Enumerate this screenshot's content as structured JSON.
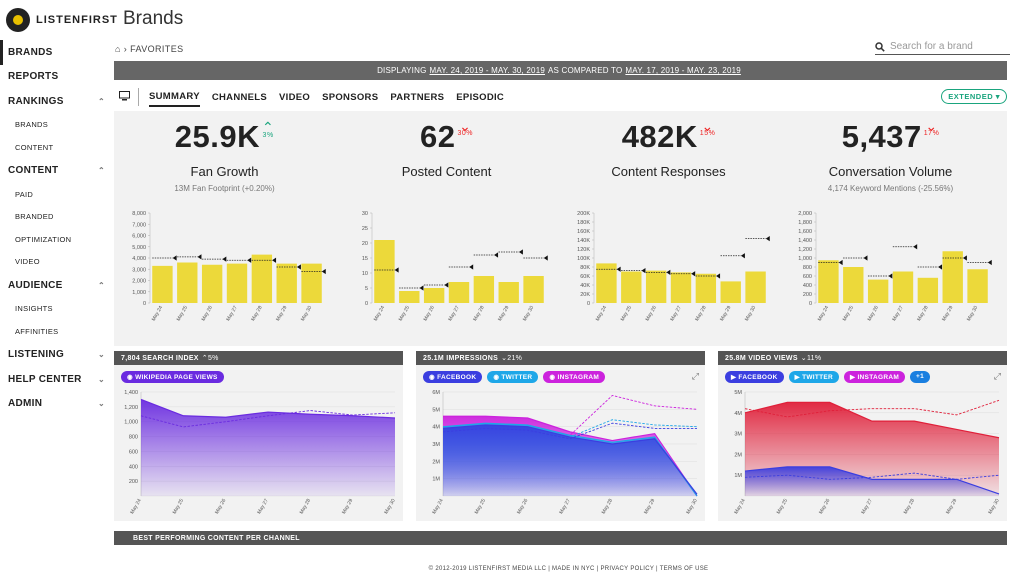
{
  "app": {
    "logo_text": "LISTENFIRST",
    "page_title": "Brands"
  },
  "sidebar": {
    "items": [
      {
        "label": "BRANDS",
        "level": 1,
        "active": true,
        "chevron": ""
      },
      {
        "label": "REPORTS",
        "level": 1,
        "chevron": ""
      },
      {
        "label": "RANKINGS",
        "level": 1,
        "chevron": "^"
      },
      {
        "label": "BRANDS",
        "level": 2
      },
      {
        "label": "CONTENT",
        "level": 2
      },
      {
        "label": "CONTENT",
        "level": 1,
        "chevron": "^"
      },
      {
        "label": "PAID",
        "level": 2
      },
      {
        "label": "BRANDED",
        "level": 2
      },
      {
        "label": "OPTIMIZATION",
        "level": 2
      },
      {
        "label": "VIDEO",
        "level": 2
      },
      {
        "label": "AUDIENCE",
        "level": 1,
        "chevron": "^"
      },
      {
        "label": "INSIGHTS",
        "level": 2
      },
      {
        "label": "AFFINITIES",
        "level": 2
      },
      {
        "label": "LISTENING",
        "level": 1,
        "chevron": "v"
      },
      {
        "label": "HELP CENTER",
        "level": 1,
        "chevron": "v"
      },
      {
        "label": "ADMIN",
        "level": 1,
        "chevron": "v"
      }
    ]
  },
  "breadcrumb": "FAVORITES",
  "search": {
    "placeholder": "Search for a brand"
  },
  "datebar": {
    "prefix": "DISPLAYING",
    "range": "MAY. 24, 2019 - MAY. 30, 2019",
    "mid": "AS COMPARED TO",
    "compare": "MAY. 17, 2019 - MAY. 23, 2019"
  },
  "tabs": [
    "SUMMARY",
    "CHANNELS",
    "VIDEO",
    "SPONSORS",
    "PARTNERS",
    "EPISODIC"
  ],
  "extended_label": "EXTENDED",
  "kpis": [
    {
      "value": "25.9K",
      "change": "3%",
      "dir": "up",
      "name": "Fan Growth",
      "sub": "13M Fan Footprint (+0.20%)"
    },
    {
      "value": "62",
      "change": "30%",
      "dir": "down",
      "name": "Posted Content",
      "sub": ""
    },
    {
      "value": "482K",
      "change": "15%",
      "dir": "down",
      "name": "Content Responses",
      "sub": ""
    },
    {
      "value": "5,437",
      "change": "17%",
      "dir": "down",
      "name": "Conversation Volume",
      "sub": "4,174 Keyword Mentions (-25.56%)"
    }
  ],
  "cards": [
    {
      "title": "7,804 SEARCH INDEX",
      "change": "5%",
      "dir": "up",
      "pills": [
        {
          "label": "WIKIPEDIA PAGE VIEWS",
          "color": "#6a2be0"
        }
      ]
    },
    {
      "title": "25.1M IMPRESSIONS",
      "change": "21%",
      "dir": "down",
      "pills": [
        {
          "label": "FACEBOOK",
          "color": "#3b3ee0"
        },
        {
          "label": "TWITTER",
          "color": "#1ea7e8"
        },
        {
          "label": "INSTAGRAM",
          "color": "#cc22dd"
        }
      ]
    },
    {
      "title": "25.8M VIDEO VIEWS",
      "change": "11%",
      "dir": "down",
      "pills": [
        {
          "label": "FACEBOOK",
          "color": "#3b3ee0"
        },
        {
          "label": "TWITTER",
          "color": "#1ea7e8"
        },
        {
          "label": "INSTAGRAM",
          "color": "#cc22dd"
        },
        {
          "label": "+1",
          "color": "#1a7fe0"
        }
      ]
    }
  ],
  "best_label": "BEST PERFORMING CONTENT PER CHANNEL",
  "footer": "© 2012-2019 LISTENFIRST MEDIA LLC | MADE IN NYC | PRIVACY POLICY | TERMS OF USE",
  "chart_data": [
    {
      "type": "bar",
      "categories": [
        "May 24",
        "May 25",
        "May 26",
        "May 27",
        "May 28",
        "May 29",
        "May 30"
      ],
      "values": [
        3300,
        3600,
        3400,
        3500,
        4300,
        3500,
        3500
      ],
      "compare": [
        4000,
        4100,
        3900,
        3800,
        3800,
        3200,
        2800
      ],
      "ylim": [
        0,
        8000
      ],
      "ticks": [
        0,
        1000,
        2000,
        3000,
        4000,
        5000,
        6000,
        7000,
        8000
      ],
      "tick_labels": [
        "0",
        "1,000",
        "2,000",
        "3,000",
        "4,000",
        "5,000",
        "6,000",
        "7,000",
        "8,000"
      ],
      "color": "#ecd93a"
    },
    {
      "type": "bar",
      "categories": [
        "May 24",
        "May 25",
        "May 26",
        "May 27",
        "May 28",
        "May 29",
        "May 30"
      ],
      "values": [
        21,
        4,
        5,
        7,
        9,
        7,
        9
      ],
      "compare": [
        11,
        5,
        6,
        12,
        16,
        17,
        15
      ],
      "ylim": [
        0,
        30
      ],
      "ticks": [
        0,
        5,
        10,
        15,
        20,
        25,
        30
      ],
      "tick_labels": [
        "0",
        "5",
        "10",
        "15",
        "20",
        "25",
        "30"
      ],
      "color": "#ecd93a"
    },
    {
      "type": "bar",
      "categories": [
        "May 24",
        "May 25",
        "May 26",
        "May 27",
        "May 28",
        "May 29",
        "May 30"
      ],
      "values": [
        88000,
        70000,
        72000,
        68000,
        65000,
        48000,
        70000
      ],
      "compare": [
        75000,
        72000,
        68000,
        65000,
        60000,
        105000,
        143000
      ],
      "ylim": [
        0,
        200000
      ],
      "ticks": [
        0,
        20000,
        40000,
        60000,
        80000,
        100000,
        120000,
        140000,
        160000,
        180000,
        200000
      ],
      "tick_labels": [
        "0",
        "20K",
        "40K",
        "60K",
        "80K",
        "100K",
        "120K",
        "140K",
        "160K",
        "180K",
        "200K"
      ],
      "color": "#ecd93a"
    },
    {
      "type": "bar",
      "categories": [
        "May 24",
        "May 25",
        "May 26",
        "May 27",
        "May 28",
        "May 29",
        "May 30"
      ],
      "values": [
        950,
        800,
        520,
        700,
        560,
        1150,
        750
      ],
      "compare": [
        900,
        1000,
        600,
        1250,
        800,
        1000,
        900
      ],
      "ylim": [
        0,
        2000
      ],
      "ticks": [
        0,
        200,
        400,
        600,
        800,
        1000,
        1200,
        1400,
        1600,
        1800,
        2000
      ],
      "tick_labels": [
        "0",
        "200",
        "400",
        "600",
        "800",
        "1,000",
        "1,200",
        "1,400",
        "1,600",
        "1,800",
        "2,000"
      ],
      "color": "#ecd93a"
    },
    {
      "type": "area",
      "x": [
        "May 24",
        "May 25",
        "May 26",
        "May 27",
        "May 28",
        "May 29",
        "May 30"
      ],
      "ylim": [
        0,
        1400
      ],
      "ticks": [
        0,
        200,
        400,
        600,
        800,
        1000,
        1200,
        1400
      ],
      "tick_labels": [
        "",
        "200",
        "400",
        "600",
        "800",
        "1,000",
        "1,200",
        "1,400"
      ],
      "series": [
        {
          "name": "WIKIPEDIA PAGE VIEWS",
          "values": [
            1300,
            1080,
            1060,
            1130,
            1100,
            1080,
            1050
          ],
          "compare": [
            1080,
            930,
            1000,
            1080,
            1150,
            1090,
            1120
          ],
          "color": "#6a2be0"
        }
      ]
    },
    {
      "type": "area",
      "x": [
        "May 24",
        "May 25",
        "May 26",
        "May 27",
        "May 28",
        "May 29",
        "May 30"
      ],
      "ylim": [
        0,
        6000000
      ],
      "ticks": [
        0,
        1000000,
        2000000,
        3000000,
        4000000,
        5000000,
        6000000
      ],
      "tick_labels": [
        "",
        "1M",
        "2M",
        "3M",
        "4M",
        "5M",
        "6M"
      ],
      "series": [
        {
          "name": "INSTAGRAM",
          "values": [
            4600000,
            4600000,
            4500000,
            3700000,
            3200000,
            3600000,
            0
          ],
          "compare": [
            3600000,
            3600000,
            3700000,
            3500000,
            5800000,
            5200000,
            5000000
          ],
          "color": "#cc22dd"
        },
        {
          "name": "TWITTER",
          "values": [
            4000000,
            4200000,
            4100000,
            3500000,
            3100000,
            3400000,
            0
          ],
          "compare": [
            3800000,
            4000000,
            3900000,
            3400000,
            4400000,
            4100000,
            4000000
          ],
          "color": "#1ea7e8"
        },
        {
          "name": "FACEBOOK",
          "values": [
            3900000,
            4100000,
            4000000,
            3400000,
            3000000,
            3300000,
            100000
          ],
          "compare": [
            3700000,
            3900000,
            3800000,
            3300000,
            4200000,
            3900000,
            3900000
          ],
          "color": "#3b3ee0"
        }
      ]
    },
    {
      "type": "area",
      "x": [
        "May 24",
        "May 25",
        "May 26",
        "May 27",
        "May 28",
        "May 29",
        "May 30"
      ],
      "ylim": [
        0,
        5000000
      ],
      "ticks": [
        0,
        1000000,
        2000000,
        3000000,
        4000000,
        5000000
      ],
      "tick_labels": [
        "",
        "1M",
        "2M",
        "3M",
        "4M",
        "5M"
      ],
      "series": [
        {
          "name": "FACEBOOK",
          "values": [
            4000000,
            4500000,
            4500000,
            3600000,
            3600000,
            3200000,
            2800000
          ],
          "compare": [
            4200000,
            3800000,
            4100000,
            4200000,
            4200000,
            3900000,
            4600000
          ],
          "color": "#e0203a"
        },
        {
          "name": "TWITTER",
          "values": [
            1200000,
            1400000,
            1400000,
            800000,
            800000,
            800000,
            100000
          ],
          "compare": [
            900000,
            1000000,
            800000,
            900000,
            1100000,
            800000,
            1000000
          ],
          "color": "#3b3ee0"
        }
      ]
    }
  ]
}
